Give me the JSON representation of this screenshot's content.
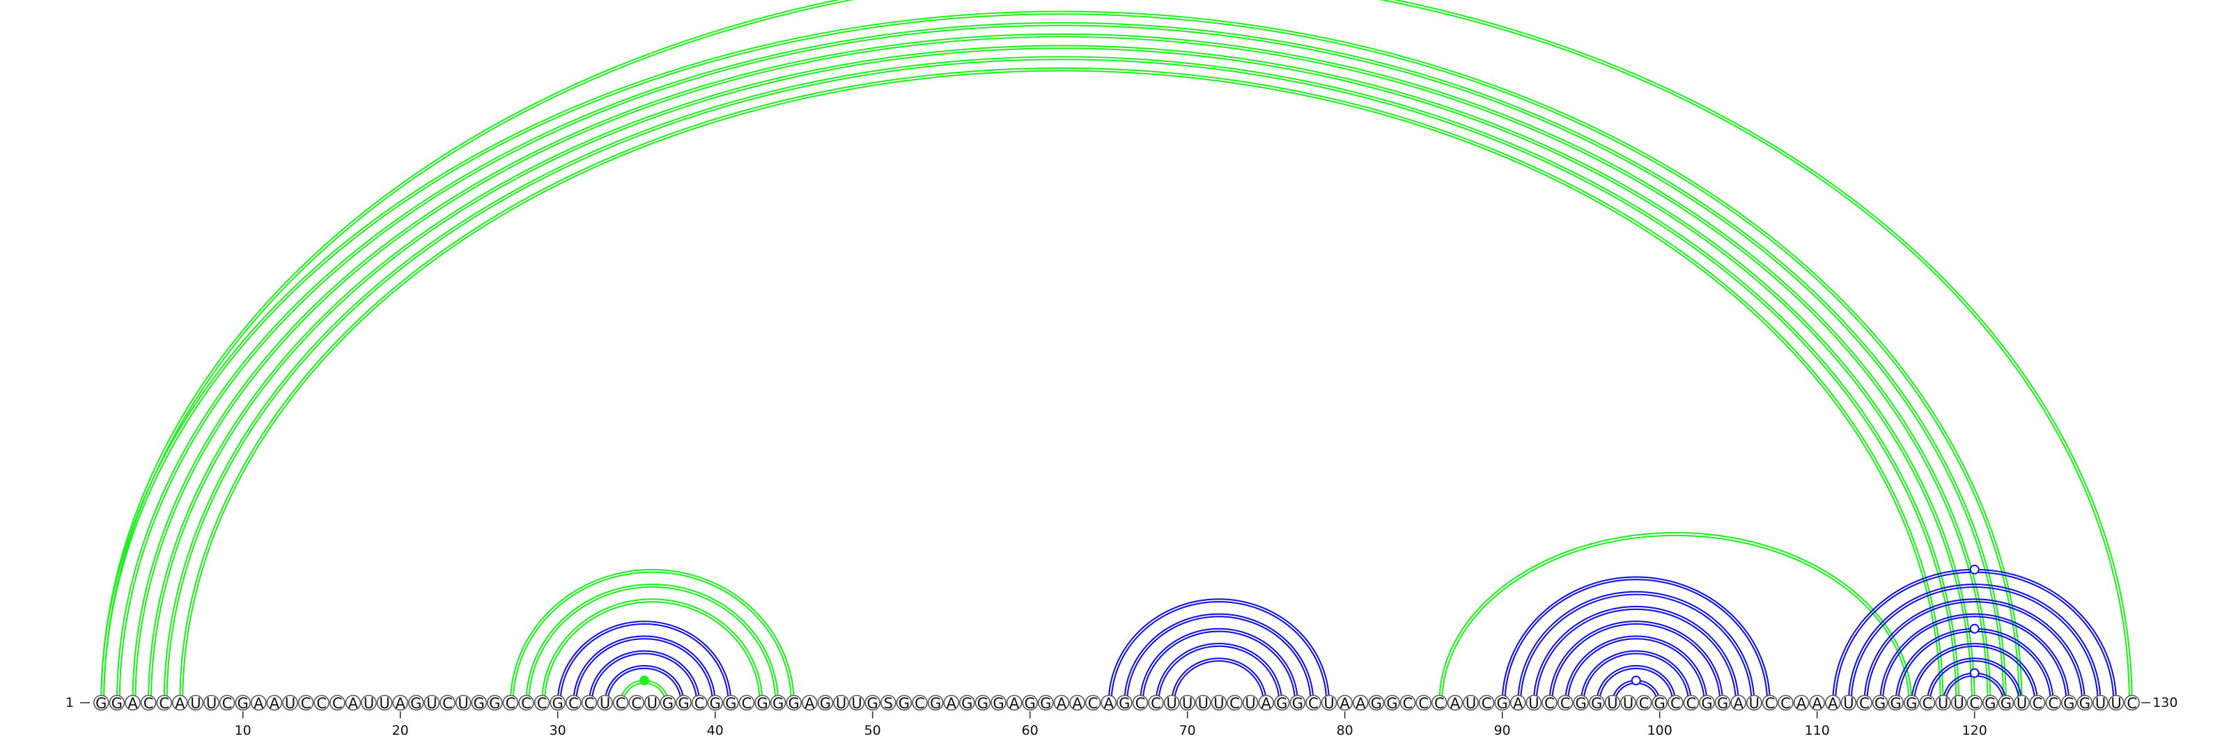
{
  "sequence": "GGACCAUUCGAAUCCCAUUAGUCUGGCCCGCCUCCUGGCGGCGGGAGUUGSGCGAGGGAGGAACAGCCUUUUCUAGGCUAAGGCCCAUCGAUCCGGUUCGCCGGAUCCAAAUCGGGCUUCGGUCCGGUUC",
  "start_label": "1",
  "end_label": "130",
  "axis_ticks": [
    "10",
    "20",
    "30",
    "40",
    "50",
    "60",
    "70",
    "80",
    "90",
    "100",
    "110",
    "120"
  ],
  "colors": {
    "green": "#22ee22",
    "blue": "#1515e0"
  },
  "arcs": [
    {
      "i": 1,
      "j": 123,
      "color": "green",
      "double": true
    },
    {
      "i": 2,
      "j": 122,
      "color": "green",
      "double": true
    },
    {
      "i": 3,
      "j": 121,
      "color": "green",
      "double": true
    },
    {
      "i": 4,
      "j": 120,
      "color": "green",
      "double": true
    },
    {
      "i": 5,
      "j": 119,
      "color": "green",
      "double": true
    },
    {
      "i": 6,
      "j": 118,
      "color": "green",
      "double": true
    },
    {
      "i": 1,
      "j": 130,
      "color": "green",
      "double": true
    },
    {
      "i": 86,
      "j": 116,
      "color": "green",
      "double": true
    },
    {
      "i": 27,
      "j": 45,
      "color": "green",
      "double": true
    },
    {
      "i": 28,
      "j": 44,
      "color": "green",
      "double": true
    },
    {
      "i": 29,
      "j": 43,
      "color": "green",
      "double": true
    },
    {
      "i": 34,
      "j": 37,
      "color": "green",
      "double": true
    },
    {
      "i": 30,
      "j": 41,
      "color": "blue",
      "double": true
    },
    {
      "i": 31,
      "j": 40,
      "color": "blue",
      "double": true
    },
    {
      "i": 32,
      "j": 39,
      "color": "blue",
      "double": true
    },
    {
      "i": 33,
      "j": 38,
      "color": "blue",
      "double": true
    },
    {
      "i": 65,
      "j": 79,
      "color": "blue",
      "double": true
    },
    {
      "i": 66,
      "j": 78,
      "color": "blue",
      "double": true
    },
    {
      "i": 67,
      "j": 77,
      "color": "blue",
      "double": true
    },
    {
      "i": 68,
      "j": 76,
      "color": "blue",
      "double": true
    },
    {
      "i": 69,
      "j": 75,
      "color": "blue",
      "double": true
    },
    {
      "i": 90,
      "j": 107,
      "color": "blue",
      "double": true
    },
    {
      "i": 91,
      "j": 106,
      "color": "blue",
      "double": true
    },
    {
      "i": 92,
      "j": 105,
      "color": "blue",
      "double": true
    },
    {
      "i": 93,
      "j": 104,
      "color": "blue",
      "double": true
    },
    {
      "i": 94,
      "j": 103,
      "color": "blue",
      "double": true
    },
    {
      "i": 95,
      "j": 102,
      "color": "blue",
      "double": true
    },
    {
      "i": 96,
      "j": 101,
      "color": "blue",
      "double": true
    },
    {
      "i": 97,
      "j": 100,
      "color": "blue",
      "double": true
    },
    {
      "i": 111,
      "j": 129,
      "color": "blue",
      "double": true
    },
    {
      "i": 112,
      "j": 128,
      "color": "blue",
      "double": true
    },
    {
      "i": 113,
      "j": 127,
      "color": "blue",
      "double": true
    },
    {
      "i": 114,
      "j": 126,
      "color": "blue",
      "double": true
    },
    {
      "i": 115,
      "j": 125,
      "color": "blue",
      "double": true
    },
    {
      "i": 116,
      "j": 124,
      "color": "blue",
      "double": true
    },
    {
      "i": 117,
      "j": 123,
      "color": "blue",
      "double": true
    },
    {
      "i": 118,
      "j": 122,
      "color": "blue",
      "double": true
    }
  ],
  "markers": [
    {
      "i": 1,
      "j": 130,
      "color": "green",
      "filled": false
    },
    {
      "i": 34,
      "j": 37,
      "color": "green",
      "filled": true
    },
    {
      "i": 97,
      "j": 100,
      "color": "blue",
      "filled": false
    },
    {
      "i": 111,
      "j": 129,
      "color": "blue",
      "filled": false
    },
    {
      "i": 115,
      "j": 125,
      "color": "blue",
      "filled": false
    },
    {
      "i": 118,
      "j": 122,
      "color": "blue",
      "filled": false
    }
  ]
}
